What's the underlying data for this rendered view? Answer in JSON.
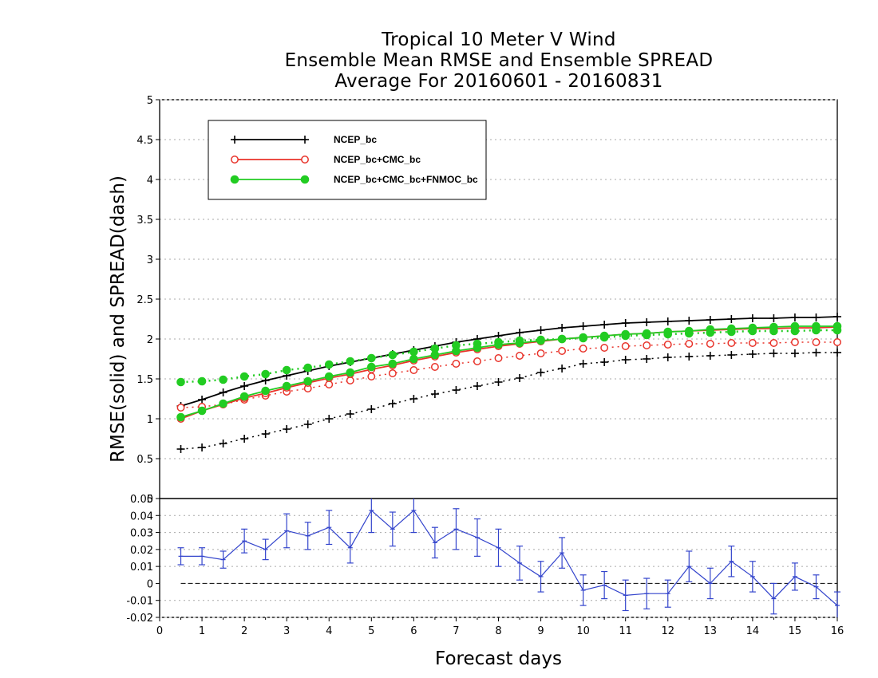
{
  "chart_data": [
    {
      "type": "line",
      "title": "Tropical 10 Meter V Wind",
      "subtitle": "Ensemble Mean RMSE and Ensemble SPREAD",
      "subtitle2": "Average For 20160601 - 20160831",
      "ylabel": "RMSE(solid) and SPREAD(dash)",
      "xlabel": "Forecast days",
      "xlim": [
        0,
        16
      ],
      "ylim": [
        0,
        5
      ],
      "xticks": [
        "0",
        "1",
        "2",
        "3",
        "4",
        "5",
        "6",
        "7",
        "8",
        "9",
        "10",
        "11",
        "12",
        "13",
        "14",
        "15",
        "16"
      ],
      "yticks": [
        "0",
        "0.5",
        "1",
        "1.5",
        "2",
        "2.5",
        "3",
        "3.5",
        "4",
        "4.5",
        "5"
      ],
      "grid": true,
      "legend_position": "top-left",
      "x": [
        0.5,
        1,
        1.5,
        2,
        2.5,
        3,
        3.5,
        4,
        4.5,
        5,
        5.5,
        6,
        6.5,
        7,
        7.5,
        8,
        8.5,
        9,
        9.5,
        10,
        10.5,
        11,
        11.5,
        12,
        12.5,
        13,
        13.5,
        14,
        14.5,
        15,
        15.5,
        16
      ],
      "series": [
        {
          "name": "NCEP_bc",
          "color": "#000000",
          "marker": "plus",
          "rmse": [
            1.16,
            1.24,
            1.33,
            1.41,
            1.48,
            1.54,
            1.6,
            1.66,
            1.71,
            1.76,
            1.81,
            1.86,
            1.91,
            1.96,
            2.0,
            2.04,
            2.08,
            2.11,
            2.14,
            2.16,
            2.18,
            2.2,
            2.21,
            2.22,
            2.23,
            2.24,
            2.25,
            2.26,
            2.26,
            2.27,
            2.27,
            2.28
          ],
          "spread": [
            0.62,
            0.64,
            0.69,
            0.75,
            0.81,
            0.87,
            0.93,
            1.0,
            1.06,
            1.12,
            1.19,
            1.25,
            1.31,
            1.36,
            1.41,
            1.46,
            1.51,
            1.58,
            1.63,
            1.69,
            1.71,
            1.74,
            1.75,
            1.77,
            1.78,
            1.79,
            1.8,
            1.81,
            1.82,
            1.82,
            1.83,
            1.83
          ]
        },
        {
          "name": "NCEP_bc+CMC_bc",
          "color": "#e8332a",
          "marker": "open-circle",
          "rmse": [
            1.0,
            1.1,
            1.18,
            1.26,
            1.32,
            1.39,
            1.45,
            1.51,
            1.56,
            1.62,
            1.67,
            1.73,
            1.78,
            1.83,
            1.87,
            1.91,
            1.94,
            1.97,
            2.0,
            2.02,
            2.04,
            2.06,
            2.07,
            2.09,
            2.1,
            2.11,
            2.12,
            2.13,
            2.13,
            2.14,
            2.14,
            2.15
          ],
          "spread": [
            1.14,
            1.15,
            1.18,
            1.24,
            1.29,
            1.34,
            1.38,
            1.43,
            1.48,
            1.53,
            1.57,
            1.61,
            1.65,
            1.69,
            1.72,
            1.76,
            1.79,
            1.82,
            1.85,
            1.88,
            1.89,
            1.91,
            1.92,
            1.93,
            1.94,
            1.94,
            1.95,
            1.95,
            1.95,
            1.96,
            1.96,
            1.96
          ]
        },
        {
          "name": "NCEP_bc+CMC_bc+FNMOC_bc",
          "color": "#22cc22",
          "marker": "filled-circle",
          "rmse": [
            1.02,
            1.1,
            1.19,
            1.28,
            1.35,
            1.41,
            1.47,
            1.53,
            1.58,
            1.65,
            1.69,
            1.75,
            1.8,
            1.85,
            1.89,
            1.93,
            1.95,
            1.98,
            2.0,
            2.02,
            2.04,
            2.06,
            2.07,
            2.09,
            2.1,
            2.12,
            2.13,
            2.14,
            2.15,
            2.16,
            2.16,
            2.16
          ],
          "spread": [
            1.46,
            1.47,
            1.49,
            1.53,
            1.56,
            1.61,
            1.64,
            1.68,
            1.72,
            1.76,
            1.8,
            1.84,
            1.88,
            1.92,
            1.94,
            1.96,
            1.98,
            1.99,
            2.0,
            2.01,
            2.02,
            2.04,
            2.05,
            2.06,
            2.07,
            2.08,
            2.09,
            2.1,
            2.1,
            2.1,
            2.11,
            2.11
          ]
        }
      ]
    },
    {
      "type": "line",
      "xlim": [
        0,
        16
      ],
      "ylim": [
        -0.02,
        0.05
      ],
      "yticks": [
        "-0.02",
        "-0.01",
        "0",
        "0.01",
        "0.02",
        "0.03",
        "0.04",
        "0.05"
      ],
      "color": "#3344cc",
      "error_bars": true,
      "zero_line": true,
      "x": [
        0.5,
        1,
        1.5,
        2,
        2.5,
        3,
        3.5,
        4,
        4.5,
        5,
        5.5,
        6,
        6.5,
        7,
        7.5,
        8,
        8.5,
        9,
        9.5,
        10,
        10.5,
        11,
        11.5,
        12,
        12.5,
        13,
        13.5,
        14,
        14.5,
        15,
        15.5,
        16
      ],
      "values": [
        0.016,
        0.016,
        0.014,
        0.025,
        0.02,
        0.031,
        0.028,
        0.033,
        0.021,
        0.043,
        0.032,
        0.043,
        0.024,
        0.032,
        0.027,
        0.021,
        0.012,
        0.004,
        0.018,
        -0.004,
        -0.001,
        -0.007,
        -0.006,
        -0.006,
        0.01,
        0.0,
        0.013,
        0.004,
        -0.009,
        0.004,
        -0.002,
        -0.013
      ],
      "errors": [
        0.005,
        0.005,
        0.005,
        0.007,
        0.006,
        0.01,
        0.008,
        0.01,
        0.009,
        0.013,
        0.01,
        0.013,
        0.009,
        0.012,
        0.011,
        0.011,
        0.01,
        0.009,
        0.009,
        0.009,
        0.008,
        0.009,
        0.009,
        0.008,
        0.009,
        0.009,
        0.009,
        0.009,
        0.009,
        0.008,
        0.007,
        0.008
      ]
    }
  ]
}
